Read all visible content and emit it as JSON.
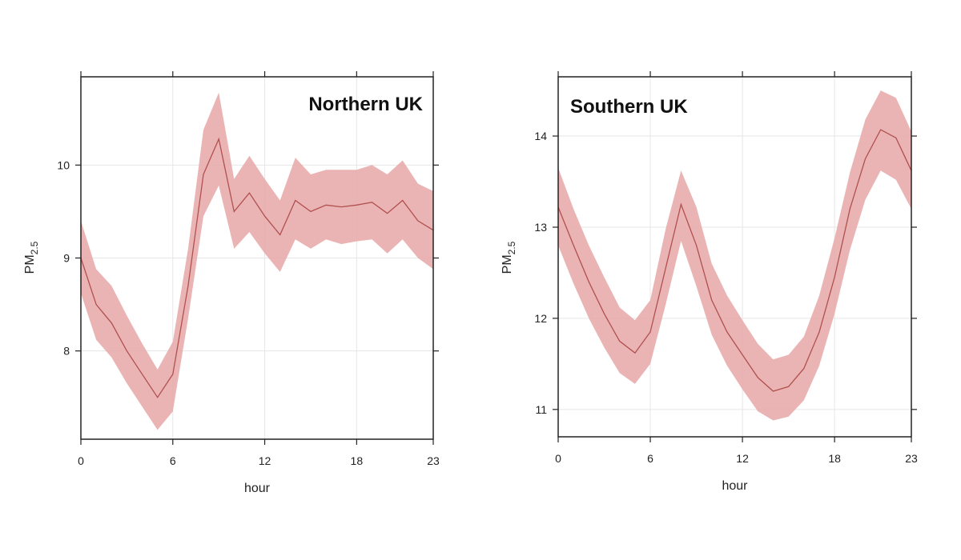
{
  "colors": {
    "band": "#e8a7a7",
    "line": "#b0504f",
    "grid": "#e6e6e6",
    "axis": "#222222"
  },
  "chart_data": [
    {
      "type": "line",
      "title": "Northern UK",
      "xlabel": "hour",
      "ylabel_main": "PM",
      "ylabel_sub": "2.5",
      "xlim": [
        0,
        23
      ],
      "ylim": [
        7.05,
        10.95
      ],
      "xticks": [
        0,
        6,
        12,
        18,
        23
      ],
      "yticks": [
        8,
        9,
        10
      ],
      "x": [
        0,
        1,
        2,
        3,
        4,
        5,
        6,
        7,
        8,
        9,
        10,
        11,
        12,
        13,
        14,
        15,
        16,
        17,
        18,
        19,
        20,
        21,
        22,
        23
      ],
      "series": [
        {
          "values": [
            9.0,
            8.5,
            8.3,
            8.0,
            7.75,
            7.5,
            7.75,
            8.7,
            9.9,
            10.28,
            9.5,
            9.7,
            9.45,
            9.25,
            9.62,
            9.5,
            9.57,
            9.55,
            9.57,
            9.6,
            9.48,
            9.62,
            9.4,
            9.3
          ],
          "lower": [
            8.62,
            8.12,
            7.93,
            7.65,
            7.4,
            7.15,
            7.35,
            8.35,
            9.45,
            9.78,
            9.1,
            9.28,
            9.05,
            8.85,
            9.2,
            9.1,
            9.2,
            9.15,
            9.18,
            9.2,
            9.05,
            9.2,
            9.0,
            8.88
          ],
          "upper": [
            9.4,
            8.88,
            8.7,
            8.38,
            8.08,
            7.8,
            8.1,
            9.1,
            10.38,
            10.78,
            9.85,
            10.1,
            9.85,
            9.62,
            10.08,
            9.9,
            9.95,
            9.95,
            9.95,
            10.0,
            9.9,
            10.05,
            9.8,
            9.72
          ]
        }
      ]
    },
    {
      "type": "line",
      "title": "Southern UK",
      "xlabel": "hour",
      "ylabel_main": "PM",
      "ylabel_sub": "2.5",
      "xlim": [
        0,
        23
      ],
      "ylim": [
        10.7,
        14.65
      ],
      "xticks": [
        0,
        6,
        12,
        18,
        23
      ],
      "yticks": [
        11,
        12,
        13,
        14
      ],
      "x": [
        0,
        1,
        2,
        3,
        4,
        5,
        6,
        7,
        8,
        9,
        10,
        11,
        12,
        13,
        14,
        15,
        16,
        17,
        18,
        19,
        20,
        21,
        22,
        23
      ],
      "series": [
        {
          "values": [
            13.22,
            12.8,
            12.4,
            12.05,
            11.75,
            11.62,
            11.85,
            12.55,
            13.25,
            12.8,
            12.2,
            11.85,
            11.6,
            11.35,
            11.2,
            11.25,
            11.45,
            11.85,
            12.45,
            13.2,
            13.75,
            14.07,
            13.98,
            13.62
          ],
          "lower": [
            12.8,
            12.38,
            12.0,
            11.68,
            11.4,
            11.28,
            11.5,
            12.15,
            12.85,
            12.35,
            11.82,
            11.48,
            11.22,
            10.98,
            10.88,
            10.92,
            11.1,
            11.48,
            12.05,
            12.75,
            13.3,
            13.62,
            13.52,
            13.2
          ],
          "upper": [
            13.65,
            13.2,
            12.8,
            12.45,
            12.12,
            11.98,
            12.2,
            12.98,
            13.62,
            13.22,
            12.6,
            12.25,
            11.98,
            11.72,
            11.55,
            11.6,
            11.8,
            12.25,
            12.88,
            13.6,
            14.18,
            14.5,
            14.42,
            14.05
          ]
        }
      ]
    }
  ]
}
